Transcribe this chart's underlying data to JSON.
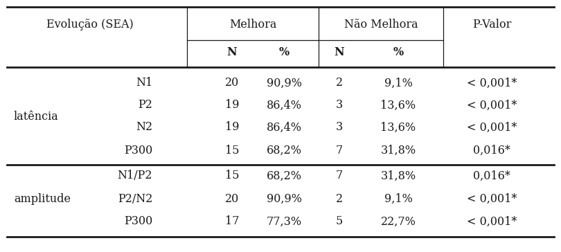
{
  "rows": [
    [
      "latência",
      "N1",
      "20",
      "90,9%",
      "2",
      "9,1%",
      "< 0,001*"
    ],
    [
      "",
      "P2",
      "19",
      "86,4%",
      "3",
      "13,6%",
      "< 0,001*"
    ],
    [
      "",
      "N2",
      "19",
      "86,4%",
      "3",
      "13,6%",
      "< 0,001*"
    ],
    [
      "",
      "P300",
      "15",
      "68,2%",
      "7",
      "31,8%",
      "0,016*"
    ],
    [
      "amplitude",
      "N1/P2",
      "15",
      "68,2%",
      "7",
      "31,8%",
      "0,016*"
    ],
    [
      "",
      "P2/N2",
      "20",
      "90,9%",
      "2",
      "9,1%",
      "< 0,001*"
    ],
    [
      "",
      "P300",
      "17",
      "77,3%",
      "5",
      "22,7%",
      "< 0,001*"
    ]
  ],
  "bg_color": "#ffffff",
  "text_color": "#1a1a1a",
  "line_color": "#1a1a1a",
  "font_size": 11.5,
  "figwidth": 8.1,
  "figheight": 3.64,
  "dpi": 100
}
